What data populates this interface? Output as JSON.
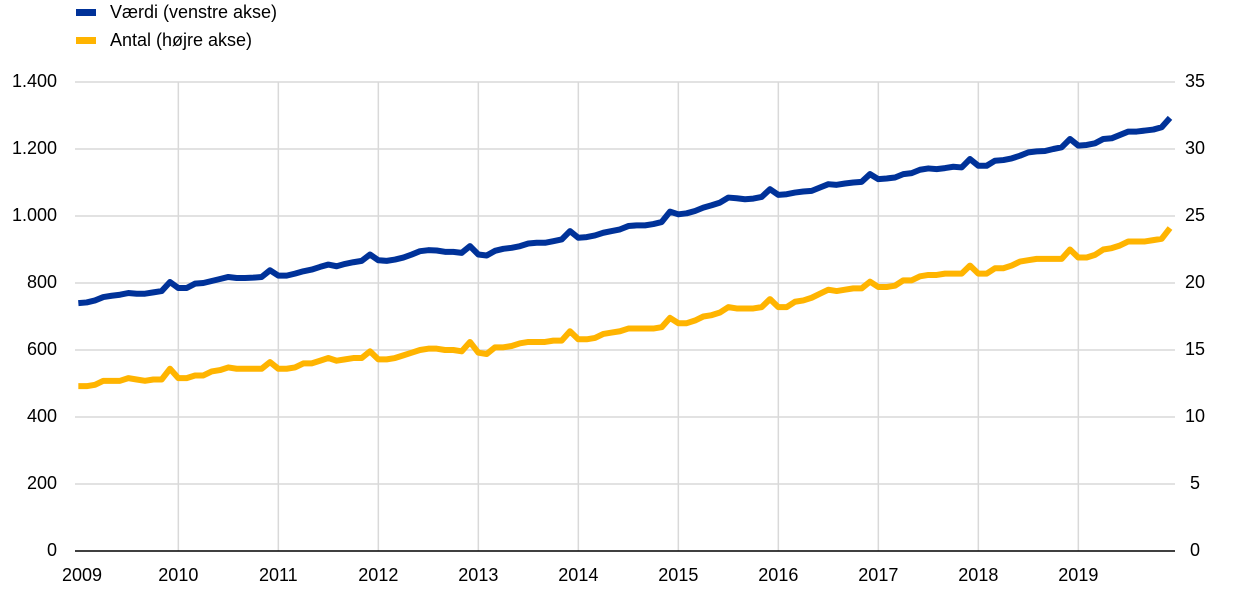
{
  "chart_data": {
    "type": "line",
    "categories": [
      "2009",
      null,
      null,
      null,
      null,
      null,
      null,
      null,
      null,
      null,
      null,
      null,
      "2010",
      null,
      null,
      null,
      null,
      null,
      null,
      null,
      null,
      null,
      null,
      null,
      "2011",
      null,
      null,
      null,
      null,
      null,
      null,
      null,
      null,
      null,
      null,
      null,
      "2012",
      null,
      null,
      null,
      null,
      null,
      null,
      null,
      null,
      null,
      null,
      null,
      "2013",
      null,
      null,
      null,
      null,
      null,
      null,
      null,
      null,
      null,
      null,
      null,
      "2014",
      null,
      null,
      null,
      null,
      null,
      null,
      null,
      null,
      null,
      null,
      null,
      "2015",
      null,
      null,
      null,
      null,
      null,
      null,
      null,
      null,
      null,
      null,
      null,
      "2016",
      null,
      null,
      null,
      null,
      null,
      null,
      null,
      null,
      null,
      null,
      null,
      "2017",
      null,
      null,
      null,
      null,
      null,
      null,
      null,
      null,
      null,
      null,
      null,
      "2018",
      null,
      null,
      null,
      null,
      null,
      null,
      null,
      null,
      null,
      null,
      null,
      "2019",
      null,
      null,
      null,
      null,
      null,
      null,
      null,
      null,
      null,
      null,
      null
    ],
    "series": [
      {
        "name": "Værdi (venstre akse)",
        "color": "#003299",
        "values": [
          740,
          742,
          748,
          758,
          762,
          765,
          770,
          768,
          768,
          772,
          776,
          803,
          785,
          785,
          798,
          800,
          806,
          812,
          818,
          815,
          815,
          816,
          818,
          838,
          822,
          822,
          828,
          835,
          840,
          848,
          855,
          850,
          857,
          862,
          866,
          885,
          868,
          866,
          870,
          876,
          885,
          895,
          898,
          897,
          893,
          893,
          890,
          910,
          885,
          882,
          896,
          902,
          905,
          910,
          918,
          920,
          920,
          925,
          930,
          955,
          935,
          937,
          942,
          950,
          955,
          960,
          970,
          972,
          972,
          976,
          982,
          1013,
          1005,
          1008,
          1015,
          1025,
          1032,
          1040,
          1055,
          1053,
          1050,
          1052,
          1057,
          1080,
          1063,
          1065,
          1070,
          1073,
          1075,
          1085,
          1095,
          1093,
          1097,
          1100,
          1102,
          1125,
          1110,
          1112,
          1115,
          1125,
          1128,
          1138,
          1142,
          1140,
          1143,
          1147,
          1145,
          1170,
          1150,
          1150,
          1165,
          1167,
          1172,
          1180,
          1190,
          1193,
          1194,
          1200,
          1205,
          1230,
          1210,
          1212,
          1217,
          1230,
          1232,
          1242,
          1252,
          1252,
          1255,
          1258,
          1265,
          1293
        ]
      },
      {
        "name": "Antal (højre akse)",
        "color": "#ffb400",
        "axis": "y2",
        "values": [
          12.3,
          12.3,
          12.4,
          12.7,
          12.7,
          12.7,
          12.9,
          12.8,
          12.7,
          12.8,
          12.8,
          13.6,
          12.9,
          12.9,
          13.1,
          13.1,
          13.4,
          13.5,
          13.7,
          13.6,
          13.6,
          13.6,
          13.6,
          14.1,
          13.6,
          13.6,
          13.7,
          14.0,
          14.0,
          14.2,
          14.4,
          14.2,
          14.3,
          14.4,
          14.4,
          14.9,
          14.3,
          14.3,
          14.4,
          14.6,
          14.8,
          15.0,
          15.1,
          15.1,
          15.0,
          15.0,
          14.9,
          15.6,
          14.8,
          14.7,
          15.2,
          15.2,
          15.3,
          15.5,
          15.6,
          15.6,
          15.6,
          15.7,
          15.7,
          16.4,
          15.8,
          15.8,
          15.9,
          16.2,
          16.3,
          16.4,
          16.6,
          16.6,
          16.6,
          16.6,
          16.7,
          17.4,
          17.0,
          17.0,
          17.2,
          17.5,
          17.6,
          17.8,
          18.2,
          18.1,
          18.1,
          18.1,
          18.2,
          18.8,
          18.2,
          18.2,
          18.6,
          18.7,
          18.9,
          19.2,
          19.5,
          19.4,
          19.5,
          19.6,
          19.6,
          20.1,
          19.7,
          19.7,
          19.8,
          20.2,
          20.2,
          20.5,
          20.6,
          20.6,
          20.7,
          20.7,
          20.7,
          21.3,
          20.7,
          20.7,
          21.1,
          21.1,
          21.3,
          21.6,
          21.7,
          21.8,
          21.8,
          21.8,
          21.8,
          22.5,
          21.9,
          21.9,
          22.1,
          22.5,
          22.6,
          22.8,
          23.1,
          23.1,
          23.1,
          23.2,
          23.3,
          24.1
        ]
      }
    ],
    "ylim": [
      0,
      1400
    ],
    "yticks": [
      0,
      200,
      400,
      600,
      800,
      {
        "value": 1000,
        "label": "1.000"
      },
      {
        "value": 1200,
        "label": "1.200"
      },
      {
        "value": 1400,
        "label": "1.400"
      }
    ],
    "y2lim": [
      0,
      35
    ],
    "y2ticks": [
      0,
      5,
      10,
      15,
      20,
      25,
      30,
      35
    ],
    "grid": true
  }
}
